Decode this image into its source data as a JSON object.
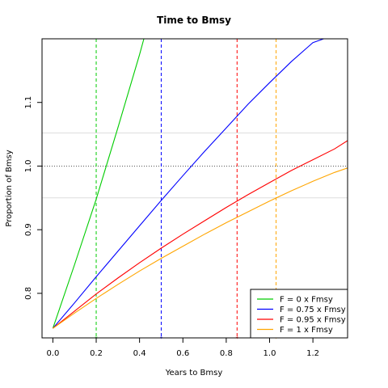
{
  "chart_data": {
    "type": "line",
    "title": "Time to Bmsy",
    "xlabel": "Years to Bmsy",
    "ylabel": "Proportion of Bmsy",
    "xlim": [
      -0.05,
      1.36
    ],
    "ylim": [
      0.73,
      1.2
    ],
    "x_ticks": [
      0.0,
      0.2,
      0.4,
      0.6,
      0.8,
      1.0,
      1.2
    ],
    "x_tick_labels": [
      "0.0",
      "0.2",
      "0.4",
      "0.6",
      "0.8",
      "1.0",
      "1.2"
    ],
    "y_ticks": [
      0.8,
      0.9,
      1.0,
      1.1
    ],
    "y_tick_labels": [
      "0.8",
      "0.9",
      "1.0",
      "1.1"
    ],
    "reference_lines": {
      "dotted_y": 1.0,
      "light_y": [
        0.95,
        1.052
      ]
    },
    "vertical_lines": [
      {
        "x": 0.2,
        "color": "#00cc00"
      },
      {
        "x": 0.5,
        "color": "#0000ff"
      },
      {
        "x": 0.85,
        "color": "#ff0000"
      },
      {
        "x": 1.03,
        "color": "#ffa500"
      }
    ],
    "series": [
      {
        "name": "F = 0 x Fmsy",
        "color": "#00cc00",
        "x": [
          0.0,
          0.1,
          0.2,
          0.3,
          0.4,
          0.42
        ],
        "y": [
          0.745,
          0.845,
          0.948,
          1.06,
          1.175,
          1.2
        ]
      },
      {
        "name": "F = 0.75 x Fmsy",
        "color": "#0000ff",
        "x": [
          0.0,
          0.1,
          0.2,
          0.3,
          0.4,
          0.5,
          0.6,
          0.7,
          0.8,
          0.9,
          1.0,
          1.1,
          1.2,
          1.25
        ],
        "y": [
          0.745,
          0.785,
          0.826,
          0.866,
          0.906,
          0.946,
          0.985,
          1.023,
          1.06,
          1.097,
          1.131,
          1.164,
          1.194,
          1.2
        ]
      },
      {
        "name": "F = 0.95 x Fmsy",
        "color": "#ff0000",
        "x": [
          0.0,
          0.1,
          0.2,
          0.3,
          0.4,
          0.5,
          0.6,
          0.7,
          0.8,
          0.9,
          1.0,
          1.1,
          1.2,
          1.3,
          1.36
        ],
        "y": [
          0.745,
          0.772,
          0.799,
          0.824,
          0.848,
          0.871,
          0.893,
          0.914,
          0.935,
          0.955,
          0.974,
          0.993,
          1.01,
          1.027,
          1.04
        ]
      },
      {
        "name": "F = 1 x Fmsy",
        "color": "#ffa500",
        "x": [
          0.0,
          0.1,
          0.2,
          0.3,
          0.4,
          0.5,
          0.6,
          0.7,
          0.8,
          0.9,
          1.0,
          1.1,
          1.2,
          1.3,
          1.36
        ],
        "y": [
          0.745,
          0.769,
          0.792,
          0.814,
          0.835,
          0.855,
          0.874,
          0.893,
          0.911,
          0.928,
          0.945,
          0.961,
          0.976,
          0.99,
          0.997
        ]
      }
    ],
    "legend_position": "bottom-right",
    "grid": false
  }
}
